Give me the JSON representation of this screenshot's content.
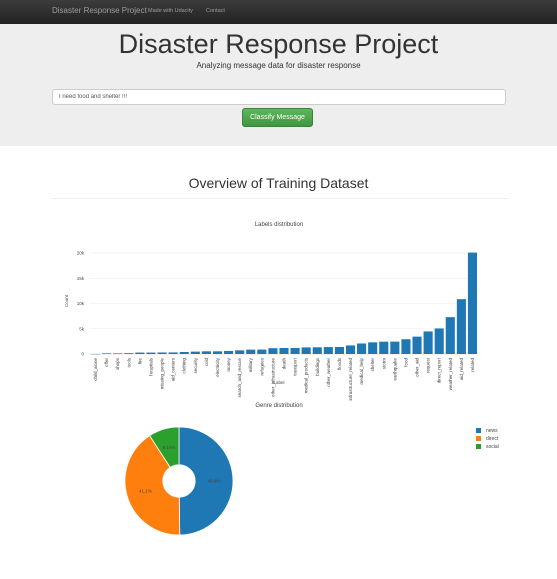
{
  "navbar": {
    "brand": "Disaster Response Project",
    "links": [
      "Made with Udacity",
      "Contact"
    ]
  },
  "header": {
    "title": "Disaster Response Project",
    "subtitle": "Analyzing message data for disaster response"
  },
  "classify": {
    "input_value": "I need food and shelter !!!",
    "button_label": "Classify Message",
    "button_color": "#5cb85c"
  },
  "section": {
    "title": "Overview of Training Dataset"
  },
  "colors": {
    "bar": "#1f77b4",
    "news": "#1f77b4",
    "direct": "#ff7f0e",
    "social": "#2ca02c"
  },
  "chart_data": [
    {
      "type": "bar",
      "title": "Labels distribution",
      "xlabel": "Label",
      "ylabel": "Count",
      "ylim": [
        0,
        21000
      ],
      "yticks": [
        0,
        5000,
        10000,
        15000,
        20000
      ],
      "ytick_labels": [
        "0",
        "5k",
        "10k",
        "15k",
        "20k"
      ],
      "grid": true,
      "categories": [
        "child_alone",
        "offer",
        "shops",
        "tools",
        "fire",
        "hospitals",
        "missing_people",
        "aid_centers",
        "clothing",
        "security",
        "cold",
        "electricity",
        "money",
        "search_and_rescue",
        "military",
        "refugees",
        "other_infrastructure",
        "death",
        "transport",
        "medical_products",
        "buildings",
        "other_weather",
        "floods",
        "infrastructure_related",
        "medical_help",
        "shelter",
        "storm",
        "earthquake",
        "food",
        "other_aid",
        "request",
        "direct_report",
        "weather_related",
        "aid_related",
        "related"
      ],
      "values": [
        0,
        120,
        120,
        160,
        280,
        280,
        300,
        310,
        400,
        470,
        530,
        530,
        600,
        720,
        860,
        880,
        1150,
        1190,
        1200,
        1310,
        1330,
        1370,
        1390,
        1700,
        2080,
        2310,
        2440,
        2450,
        2920,
        3440,
        4470,
        5070,
        7300,
        10860,
        20090
      ]
    },
    {
      "type": "pie",
      "title": "Genre distribution",
      "hole": 0.3,
      "legend_position": "top-right",
      "labels": [
        "news",
        "direct",
        "social"
      ],
      "values": [
        49.8,
        41.1,
        9.14
      ],
      "text_labels": [
        "49.8%",
        "41.1%",
        "9.14%"
      ]
    }
  ]
}
